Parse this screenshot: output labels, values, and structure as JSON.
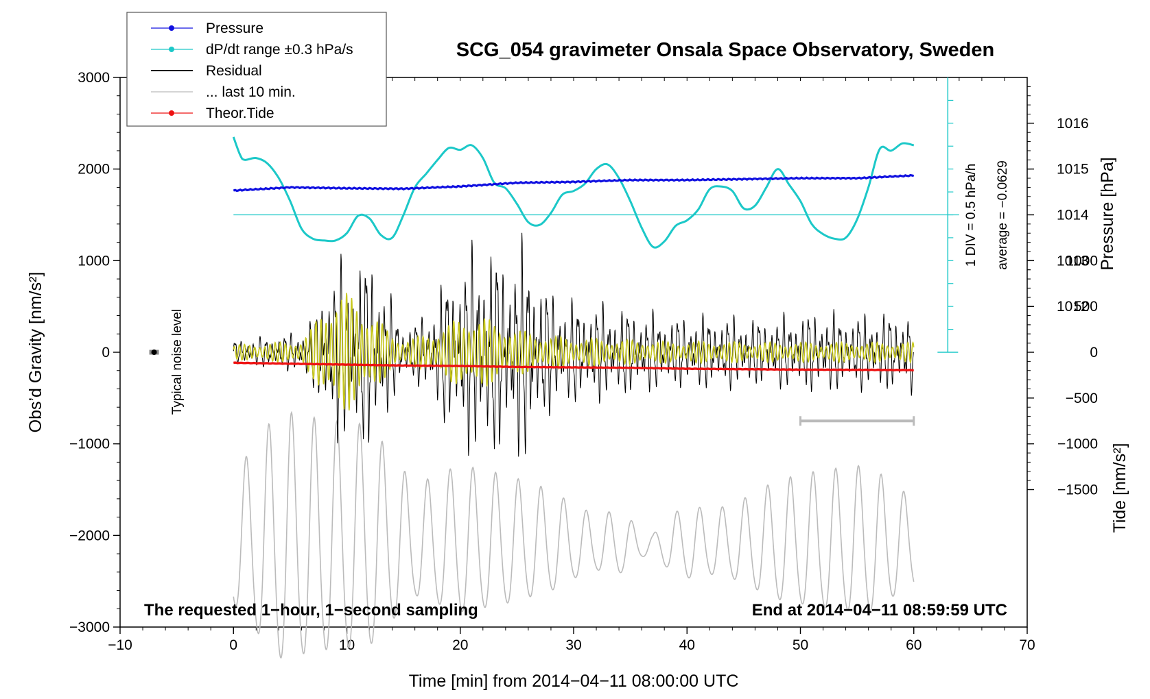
{
  "chart_data": {
    "type": "line",
    "title": "SCG_054 gravimeter Onsala Space Observatory, Sweden",
    "xlabel": "Time [min] from 2014−04−11 08:00:00 UTC",
    "xlim": [
      -10,
      70
    ],
    "x_ticks": [
      -10,
      0,
      10,
      20,
      30,
      40,
      50,
      60,
      70
    ],
    "x_tick_labels": [
      "−10",
      "0",
      "10",
      "20",
      "30",
      "40",
      "50",
      "60",
      "70"
    ],
    "left_axis": {
      "label": "Obs’d Gravity [nm/s²]",
      "ylim": [
        -3000,
        3000
      ],
      "ticks": [
        -3000,
        -2000,
        -1000,
        0,
        1000,
        2000,
        3000
      ],
      "tick_labels": [
        "−3000",
        "−2000",
        "−1000",
        "0",
        "1000",
        "2000",
        "3000"
      ]
    },
    "right_axes": [
      {
        "label": "Pressure [hPa]",
        "ticks": [
          1012,
          1013,
          1014,
          1015,
          1016
        ],
        "tick_labels": [
          "1012",
          "1013",
          "1014",
          "1015",
          "1016"
        ],
        "ref_value": 1014,
        "ref_gravity": 1500,
        "gravity_per_hPa": 500
      },
      {
        "label": "Tide [nm/s²]",
        "ticks": [
          1000,
          500,
          0,
          -500,
          -1000,
          -1500
        ],
        "tick_labels": [
          "1000",
          "500",
          "0",
          "−500",
          "−1000",
          "−1500"
        ],
        "ref_value": 0,
        "ref_gravity": -1500,
        "gravity_per_unit": 1
      }
    ],
    "legend": {
      "position": "top-left",
      "entries": [
        {
          "label": "Pressure",
          "color": "#1010e0",
          "marker": true
        },
        {
          "label": "dP/dt range ±0.3 hPa/s",
          "color": "#1cc8c8",
          "marker": true
        },
        {
          "label": "Residual",
          "color": "#000000",
          "marker": false
        },
        {
          "label": "... last 10 min.",
          "color": "#bbbbbb",
          "marker": false
        },
        {
          "label": "Theor.Tide",
          "color": "#ee1111",
          "marker": true
        }
      ]
    },
    "series": [
      {
        "name": "Pressure",
        "color": "#1010e0",
        "unit": "hPa",
        "x": [
          0,
          5,
          10,
          15,
          20,
          25,
          30,
          35,
          40,
          45,
          50,
          55,
          60
        ],
        "values": [
          1014.53,
          1014.6,
          1014.58,
          1014.57,
          1014.62,
          1014.7,
          1014.72,
          1014.76,
          1014.76,
          1014.78,
          1014.8,
          1014.8,
          1014.86
        ]
      },
      {
        "name": "dP/dt",
        "color": "#1cc8c8",
        "unit": "nm/s² on left axis",
        "x": [
          0,
          0.6,
          1,
          2,
          3,
          4,
          5,
          6,
          7,
          8,
          9,
          10,
          11,
          12,
          13,
          14,
          15,
          16,
          17,
          18,
          19,
          20,
          21,
          22,
          23,
          24,
          25,
          26,
          27,
          28,
          29,
          30,
          31,
          32,
          33,
          34,
          35,
          36,
          37,
          38,
          39,
          40,
          41,
          42,
          43,
          44,
          45,
          46,
          47,
          48,
          49,
          50,
          51,
          52,
          53,
          54,
          55,
          56,
          57,
          58,
          59,
          60
        ],
        "values": [
          2350,
          2150,
          2100,
          2120,
          2060,
          1900,
          1650,
          1350,
          1240,
          1220,
          1220,
          1300,
          1490,
          1460,
          1280,
          1250,
          1500,
          1800,
          1950,
          2100,
          2230,
          2210,
          2260,
          2120,
          1850,
          1790,
          1620,
          1420,
          1390,
          1520,
          1720,
          1760,
          1840,
          2000,
          2050,
          1900,
          1650,
          1360,
          1150,
          1210,
          1380,
          1440,
          1560,
          1780,
          1810,
          1760,
          1570,
          1600,
          1800,
          2000,
          1830,
          1650,
          1400,
          1290,
          1240,
          1250,
          1450,
          1800,
          2220,
          2200,
          2280,
          2260
        ]
      },
      {
        "name": "Residual",
        "color": "#000000",
        "unit": "nm/s²",
        "x": [
          0,
          4,
          6,
          7,
          8,
          9,
          10,
          11,
          12,
          13,
          14,
          15,
          16,
          17,
          18,
          19,
          20,
          21,
          22,
          23,
          24,
          25,
          26,
          27,
          28,
          30,
          32,
          34,
          36,
          38,
          40,
          42,
          44,
          46,
          48,
          50,
          52,
          54,
          56,
          58,
          60
        ],
        "values": [
          120,
          170,
          220,
          350,
          720,
          900,
          920,
          980,
          1000,
          860,
          500,
          280,
          320,
          400,
          600,
          820,
          900,
          1050,
          1150,
          1080,
          1000,
          1080,
          1100,
          780,
          620,
          520,
          500,
          460,
          420,
          370,
          360,
          380,
          370,
          340,
          360,
          400,
          420,
          380,
          390,
          400,
          420
        ]
      },
      {
        "name": "Residual (filtered)",
        "color": "#c8c81e",
        "unit": "nm/s²",
        "x": [
          0,
          4,
          6,
          7,
          8,
          9,
          10,
          11,
          12,
          13,
          14,
          15,
          16,
          17,
          18,
          19,
          20,
          21,
          22,
          23,
          24,
          25,
          26,
          27,
          28,
          30,
          32,
          34,
          36,
          38,
          40,
          42,
          44,
          46,
          48,
          50,
          52,
          54,
          56,
          58,
          60
        ],
        "values": [
          80,
          110,
          130,
          280,
          550,
          680,
          650,
          600,
          480,
          330,
          200,
          150,
          160,
          200,
          260,
          320,
          380,
          440,
          400,
          330,
          300,
          250,
          230,
          200,
          180,
          160,
          150,
          140,
          130,
          120,
          120,
          120,
          115,
          110,
          110,
          110,
          110,
          110,
          110,
          110,
          110
        ]
      },
      {
        "name": "... last 10 min.",
        "color": "#bbbbbb",
        "unit": "nm/s²",
        "offset": -2100,
        "x": [
          0,
          4,
          8,
          12,
          16,
          20,
          24,
          28,
          30,
          32,
          34,
          36,
          37,
          38,
          40,
          42,
          44,
          48,
          52,
          56,
          59.5
        ],
        "values": [
          700,
          1350,
          1250,
          1200,
          600,
          800,
          700,
          550,
          400,
          300,
          350,
          150,
          100,
          250,
          400,
          350,
          400,
          650,
          750,
          800,
          500
        ]
      },
      {
        "name": "Theor.Tide",
        "color": "#ee1111",
        "unit": "nm/s²",
        "x": [
          0,
          5,
          10,
          15,
          20,
          25,
          30,
          35,
          40,
          45,
          50,
          55,
          60
        ],
        "values": [
          -115,
          -125,
          -135,
          -145,
          -150,
          -160,
          -165,
          -170,
          -180,
          -185,
          -190,
          -192,
          -195
        ]
      }
    ],
    "range_bar": {
      "x_start": 50,
      "x_end": 60,
      "y": -750,
      "color": "#bbbbbb"
    },
    "noise_marker": {
      "x": -7,
      "y": 0,
      "label": "Typical noise level"
    },
    "dPdt_scale": {
      "x": 63,
      "y_bottom": 0,
      "y_top": 3000,
      "ref_y": 1500,
      "div_label": "1 DIV = 0.5 hPa/h",
      "average_label": "average = −0.0629"
    },
    "annotations": {
      "bottom_left": "The requested 1−hour, 1−second sampling",
      "bottom_right": "End at 2014−04−11 08:59:59 UTC"
    }
  }
}
